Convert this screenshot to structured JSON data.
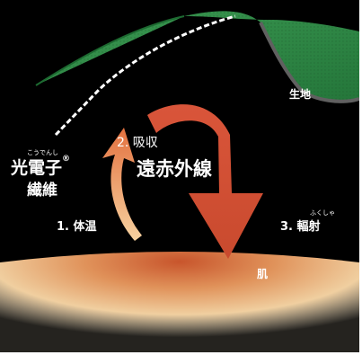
{
  "labels": {
    "fabric": "生地",
    "fiber_line1": "光電子",
    "fiber_mark": "®",
    "fiber_line2": "繊維",
    "fiber_ruby": "こうでんし",
    "absorb": "2. 吸収",
    "far_infrared": "遠赤外線",
    "body_heat": "1. 体温",
    "radiation": "3. 輻射",
    "radiation_ruby": "ふくしゃ",
    "skin": "肌"
  },
  "colors": {
    "background": "#000000",
    "fabric": "#2f8a45",
    "fabric_edge": "#606060",
    "thread": "#ffffff",
    "arrow_far_infrared": "#d9553a",
    "arrow_body_heat": "#f09a55",
    "skin_center": "#c8552c",
    "skin_edge": "#f2d9b0"
  },
  "icons": {
    "skin": "skin-gradient-shape",
    "fabric": "fabric-cloth-shape",
    "cycle": "circular-arrow-shape"
  }
}
